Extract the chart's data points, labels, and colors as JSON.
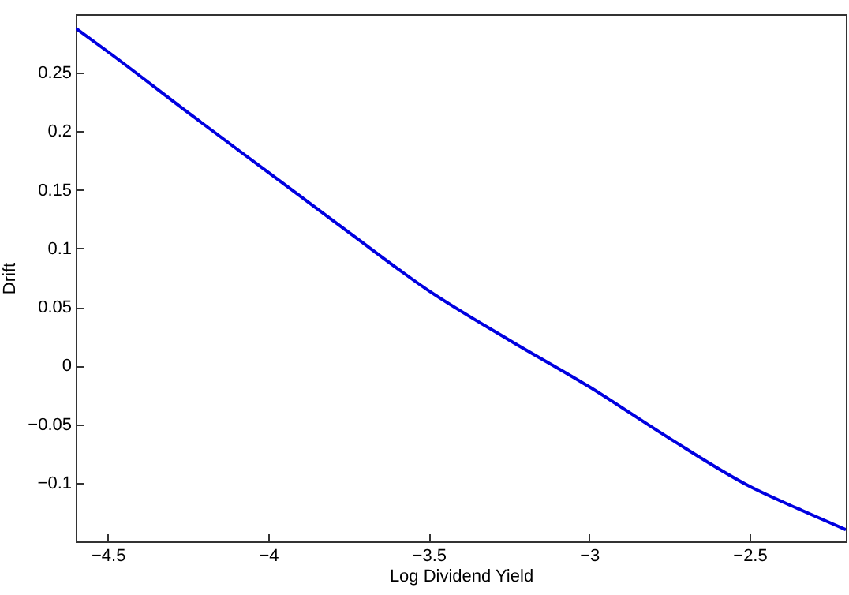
{
  "chart_data": {
    "type": "line",
    "xlabel": "Log Dividend Yield",
    "ylabel": "Drift",
    "x": [
      -4.6,
      -4.5,
      -4.25,
      -4,
      -3.75,
      -3.5,
      -3.25,
      -3,
      -2.75,
      -2.5,
      -2.35,
      -2.2
    ],
    "series": [
      {
        "color": "#0000e0",
        "values": [
          0.288,
          0.268,
          0.216,
          0.165,
          0.114,
          0.064,
          0.022,
          -0.018,
          -0.062,
          -0.103,
          -0.122,
          -0.14
        ]
      }
    ],
    "xlim": [
      -4.6,
      -2.2
    ],
    "ylim": [
      -0.15,
      0.3
    ],
    "xticks": [
      {
        "value": -4.5,
        "label": "−4.5"
      },
      {
        "value": -4,
        "label": "−4"
      },
      {
        "value": -3.5,
        "label": "−3.5"
      },
      {
        "value": -3,
        "label": "−3"
      },
      {
        "value": -2.5,
        "label": "−2.5"
      }
    ],
    "yticks": [
      {
        "value": -0.1,
        "label": "−0.1"
      },
      {
        "value": -0.05,
        "label": "−0.05"
      },
      0,
      0.05,
      0.1,
      0.15,
      0.2,
      0.25
    ],
    "grid": false,
    "marker": "none",
    "line_style": "solid"
  }
}
